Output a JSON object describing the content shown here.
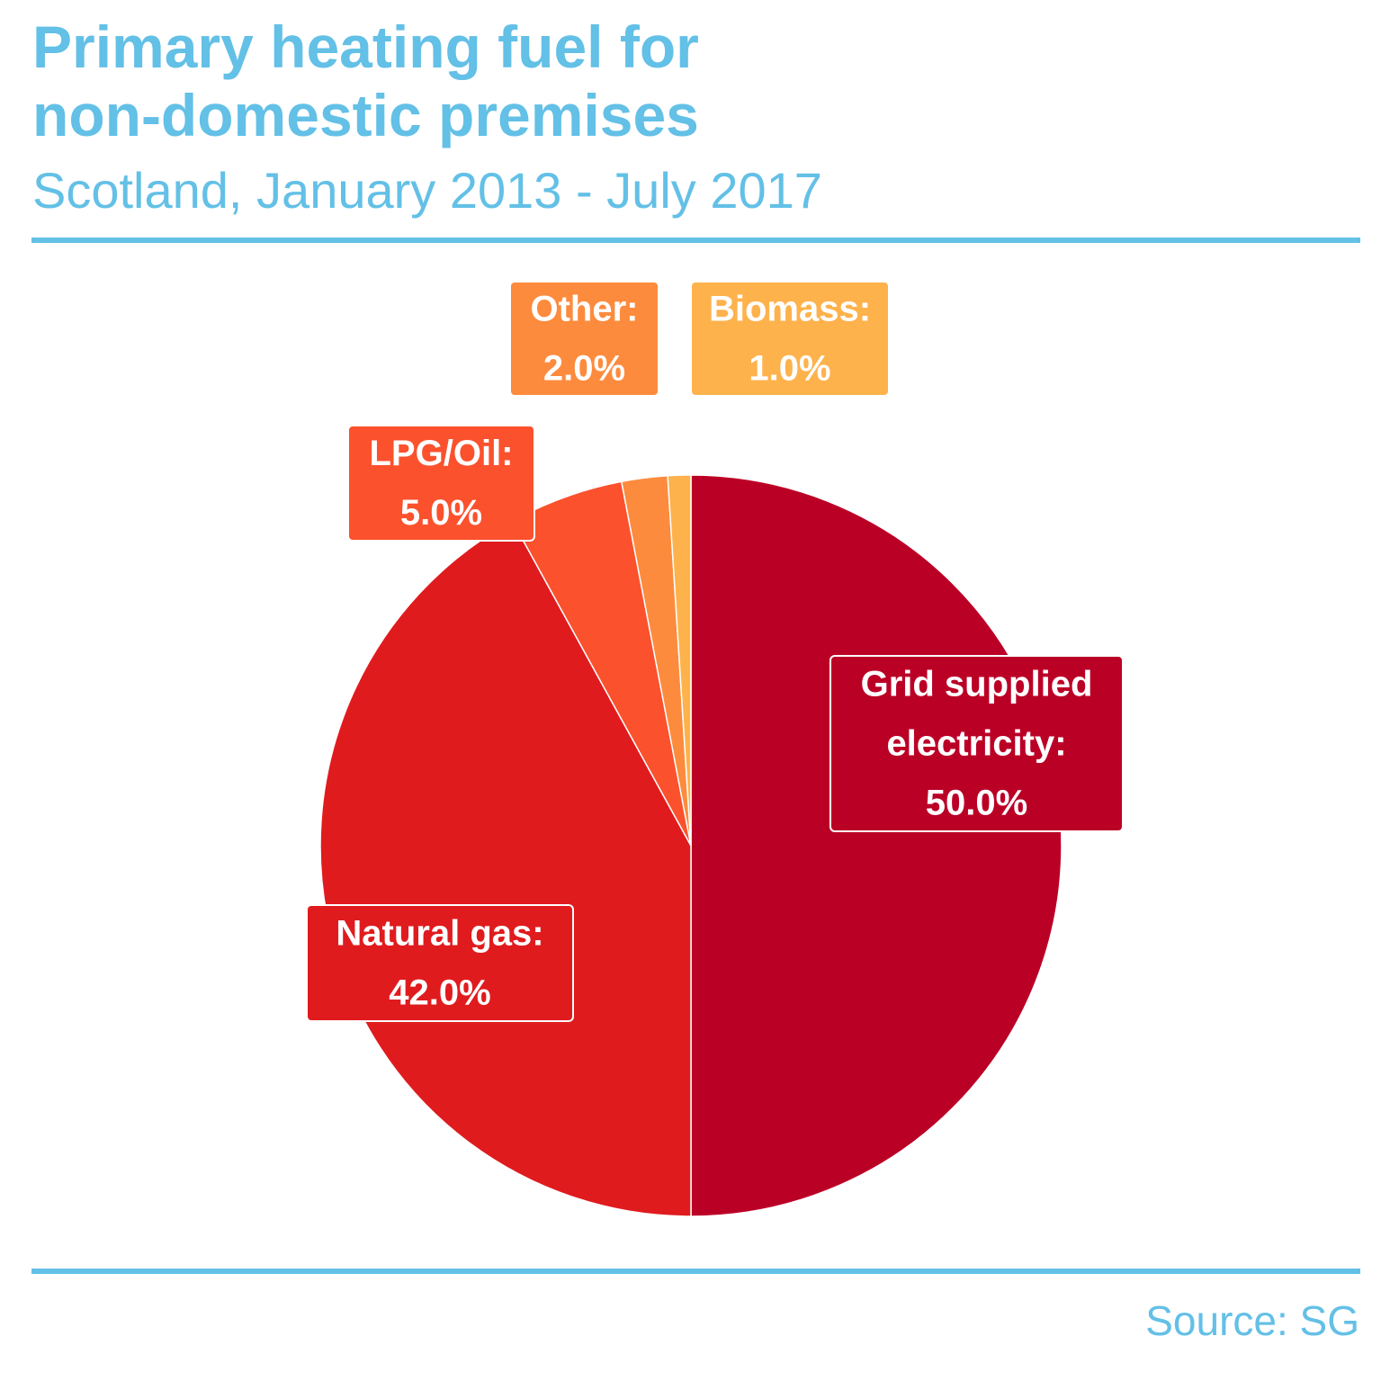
{
  "header": {
    "title_line1": "Primary heating fuel for",
    "title_line2": "non-domestic premises",
    "subtitle": "Scotland, January 2013 - July 2017"
  },
  "footer": {
    "source": "Source: SG"
  },
  "chart_data": {
    "type": "pie",
    "start_angle_deg": 0,
    "direction": "clockwise",
    "slices": [
      {
        "name": "Grid supplied electricity",
        "label_lines": [
          "Grid supplied",
          "electricity:",
          "50.0%"
        ],
        "value": 50.0,
        "color": "#bb0026"
      },
      {
        "name": "Natural gas",
        "label_lines": [
          "Natural gas:",
          "42.0%"
        ],
        "value": 42.0,
        "color": "#e01b1e"
      },
      {
        "name": "LPG/Oil",
        "label_lines": [
          "LPG/Oil:",
          "5.0%"
        ],
        "value": 5.0,
        "color": "#fb512d"
      },
      {
        "name": "Other",
        "label_lines": [
          "Other:",
          "2.0%"
        ],
        "value": 2.0,
        "color": "#fd8b3d"
      },
      {
        "name": "Biomass",
        "label_lines": [
          "Biomass:",
          "1.0%"
        ],
        "value": 1.0,
        "color": "#feb24c"
      }
    ]
  }
}
